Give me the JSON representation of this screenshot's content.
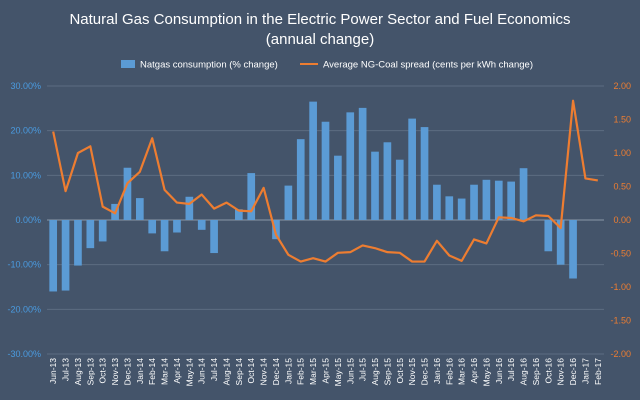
{
  "chart_data": {
    "type": "bar+line",
    "title_line1": "Natural Gas Consumption in the Electric Power Sector and Fuel Economics",
    "title_line2": "(annual change)",
    "categories": [
      "Jun-13",
      "Jul-13",
      "Aug-13",
      "Sep-13",
      "Oct-13",
      "Nov-13",
      "Dec-13",
      "Jan-14",
      "Feb-14",
      "Mar-14",
      "Apr-14",
      "May-14",
      "Jun-14",
      "Jul-14",
      "Aug-14",
      "Sep-14",
      "Oct-14",
      "Nov-14",
      "Dec-14",
      "Jan-15",
      "Feb-15",
      "Mar-15",
      "Apr-15",
      "May-15",
      "Jun-15",
      "Jul-15",
      "Aug-15",
      "Sep-15",
      "Oct-15",
      "Nov-15",
      "Dec-15",
      "Jan-16",
      "Feb-16",
      "Mar-16",
      "Apr-16",
      "May-16",
      "Jun-16",
      "Jul-16",
      "Aug-16",
      "Sep-16",
      "Oct-16",
      "Nov-16",
      "Dec-16",
      "Jan-17",
      "Feb-17"
    ],
    "series": [
      {
        "name": "Natgas consumption (% change)",
        "type": "bar",
        "axis": "left",
        "color": "#5b9bd5",
        "values": [
          -16,
          -15.8,
          -10.2,
          -6.3,
          -4.8,
          3.6,
          11.7,
          4.9,
          -3,
          -7,
          -2.8,
          5.2,
          -2.2,
          -7.4,
          0,
          2.4,
          10.5,
          0,
          -4.3,
          7.7,
          18.1,
          26.5,
          22,
          14.4,
          24.1,
          25.1,
          15.3,
          17.4,
          13.5,
          22.7,
          20.8,
          7.9,
          5.3,
          4.8,
          7.9,
          9,
          8.8,
          8.6,
          11.6,
          0,
          -7,
          -10,
          -13.1,
          0,
          0
        ]
      },
      {
        "name": "Average NG-Coal spread (cents per kWh change)",
        "type": "line",
        "axis": "right",
        "color": "#ed7d31",
        "values": [
          1.32,
          0.43,
          1.0,
          1.1,
          0.2,
          0.1,
          0.55,
          0.72,
          1.22,
          0.45,
          0.26,
          0.24,
          0.38,
          0.17,
          0.26,
          0.14,
          0.13,
          0.48,
          -0.22,
          -0.52,
          -0.62,
          -0.57,
          -0.62,
          -0.49,
          -0.48,
          -0.38,
          -0.42,
          -0.48,
          -0.49,
          -0.62,
          -0.62,
          -0.31,
          -0.53,
          -0.61,
          -0.29,
          -0.35,
          0.04,
          0.03,
          -0.02,
          0.07,
          0.06,
          -0.12,
          1.78,
          0.62,
          0.59
        ]
      }
    ],
    "y_left": {
      "range": [
        -30,
        30
      ],
      "ticks": [
        30,
        20,
        10,
        0,
        -10,
        -20,
        -30
      ],
      "tick_labels": [
        "30.00%",
        "20.00%",
        "10.00%",
        "0.00%",
        "-10.00%",
        "-20.00%",
        "-30.00%"
      ]
    },
    "y_right": {
      "range": [
        -2.0,
        2.0
      ],
      "ticks": [
        2.0,
        1.5,
        1.0,
        0.5,
        0.0,
        -0.5,
        -1.0,
        -1.5,
        -2.0
      ],
      "tick_labels": [
        "2.00",
        "1.50",
        "1.00",
        "0.50",
        "0.00",
        "-0.50",
        "-1.00",
        "-1.50",
        "-2.00"
      ]
    },
    "grid": true,
    "legend_position": "top"
  },
  "colors": {
    "background": "#44546a",
    "bars": "#5b9bd5",
    "line": "#ed7d31",
    "left_axis_text": "#4a9be0",
    "right_axis_text": "#ed7d31"
  }
}
